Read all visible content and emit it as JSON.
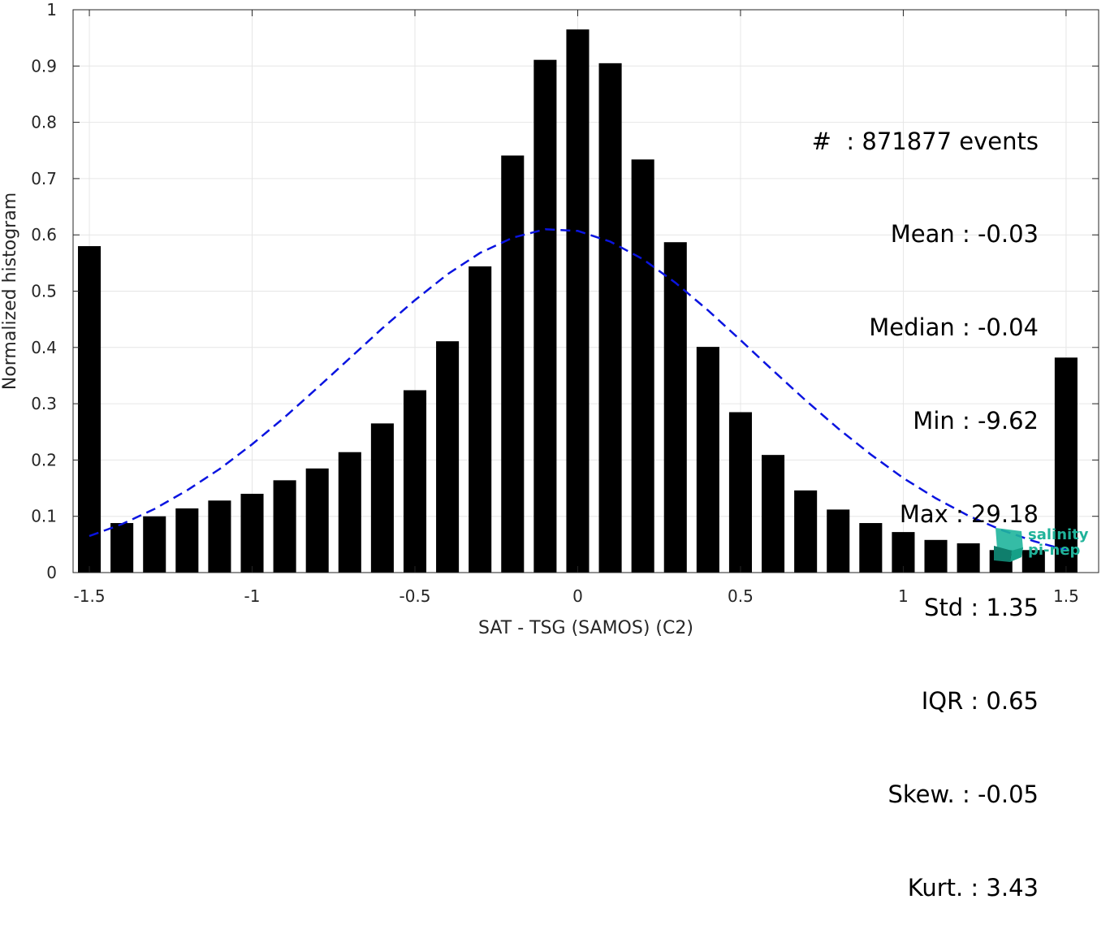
{
  "chart_data": {
    "type": "bar",
    "xlabel": "SAT - TSG (SAMOS) (C2)",
    "ylabel": "Normalized histogram",
    "xlim": [
      -1.55,
      1.6
    ],
    "ylim": [
      0,
      1
    ],
    "xticks": [
      -1.5,
      -1,
      -0.5,
      0,
      0.5,
      1,
      1.5
    ],
    "xtick_labels": [
      "-1.5",
      "-1",
      "-0.5",
      "0",
      "0.5",
      "1",
      "1.5"
    ],
    "yticks": [
      0,
      0.1,
      0.2,
      0.3,
      0.4,
      0.5,
      0.6,
      0.7,
      0.8,
      0.9,
      1
    ],
    "ytick_labels": [
      "0",
      "0.1",
      "0.2",
      "0.3",
      "0.4",
      "0.5",
      "0.6",
      "0.7",
      "0.8",
      "0.9",
      "1"
    ],
    "grid": true,
    "bar_color": "#000000",
    "bar_width": 0.07,
    "bars": {
      "x": [
        -1.5,
        -1.4,
        -1.3,
        -1.2,
        -1.1,
        -1.0,
        -0.9,
        -0.8,
        -0.7,
        -0.6,
        -0.5,
        -0.4,
        -0.3,
        -0.2,
        -0.1,
        0.0,
        0.1,
        0.2,
        0.3,
        0.4,
        0.5,
        0.6,
        0.7,
        0.8,
        0.9,
        1.0,
        1.1,
        1.2,
        1.3,
        1.4,
        1.5
      ],
      "values": [
        0.58,
        0.088,
        0.1,
        0.114,
        0.128,
        0.14,
        0.164,
        0.185,
        0.214,
        0.265,
        0.324,
        0.411,
        0.544,
        0.741,
        0.911,
        0.965,
        0.905,
        0.734,
        0.587,
        0.401,
        0.285,
        0.209,
        0.146,
        0.112,
        0.088,
        0.072,
        0.058,
        0.052,
        0.04,
        0.04,
        0.382
      ]
    },
    "fit_curve": {
      "style": "dashed",
      "color": "#0a14e0",
      "x": [
        -1.5,
        -1.4,
        -1.3,
        -1.2,
        -1.1,
        -1.0,
        -0.9,
        -0.8,
        -0.7,
        -0.6,
        -0.5,
        -0.4,
        -0.3,
        -0.2,
        -0.1,
        0.0,
        0.1,
        0.2,
        0.3,
        0.4,
        0.5,
        0.6,
        0.7,
        0.8,
        0.9,
        1.0,
        1.1,
        1.2,
        1.3,
        1.4,
        1.5
      ],
      "y": [
        0.065,
        0.086,
        0.113,
        0.146,
        0.184,
        0.228,
        0.276,
        0.328,
        0.381,
        0.434,
        0.484,
        0.53,
        0.568,
        0.595,
        0.61,
        0.607,
        0.588,
        0.557,
        0.515,
        0.466,
        0.413,
        0.359,
        0.306,
        0.256,
        0.21,
        0.168,
        0.132,
        0.101,
        0.076,
        0.056,
        0.04
      ]
    },
    "annotations": [
      "#  : 871877 events",
      "Mean : -0.03",
      "Median : -0.04",
      "Min : -9.62",
      "Max : 29.18",
      "Std : 1.35",
      "IQR : 0.65",
      "Skew. : -0.05",
      "Kurt. : 3.43"
    ]
  },
  "logo": {
    "line1": "salinity",
    "line2": "pi-nep"
  }
}
